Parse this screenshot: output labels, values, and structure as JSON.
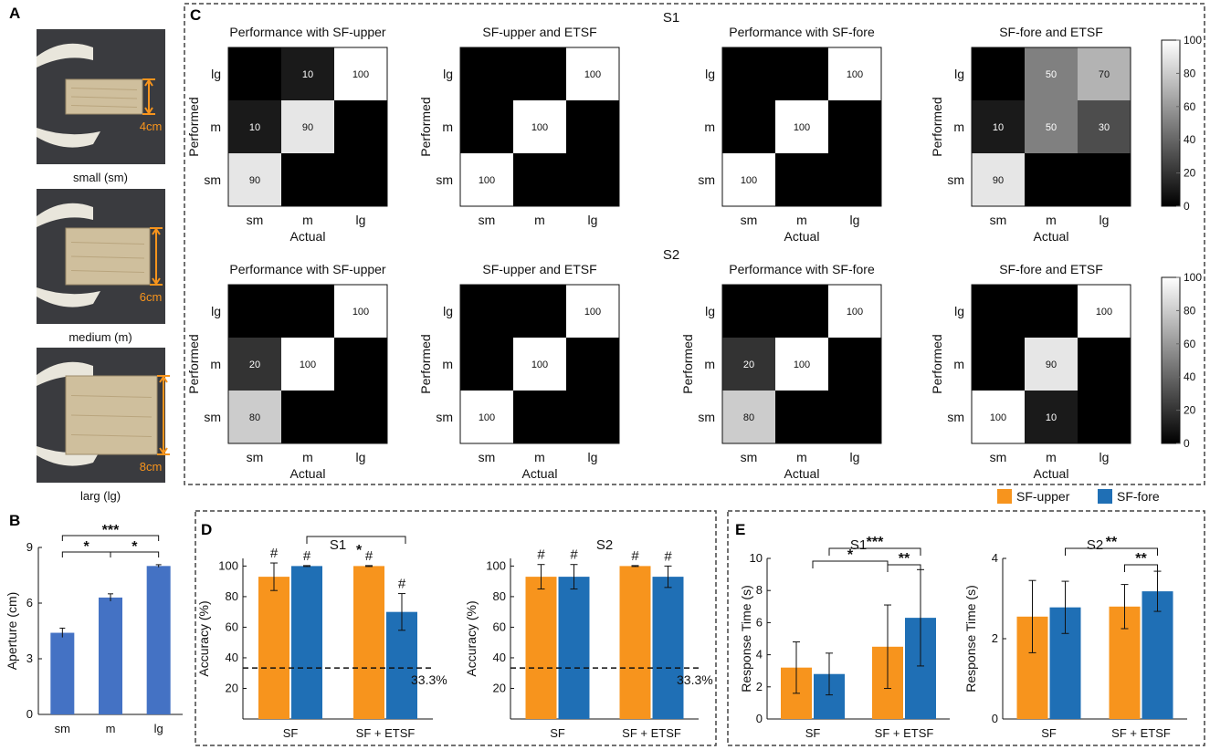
{
  "colors": {
    "sf_upper": "#F7941D",
    "sf_fore": "#1F6FB5",
    "aperture_bar": "#4472C4",
    "photo_bg": "#3a3b3f",
    "wood": "#cfbf9d",
    "measure": "#F7941D"
  },
  "panel_labels": {
    "a": "A",
    "b": "B",
    "c": "C",
    "d": "D",
    "e": "E"
  },
  "panel_a": {
    "photos": [
      {
        "size_text": "4cm",
        "caption": "small (sm)"
      },
      {
        "size_text": "6cm",
        "caption": "medium (m)"
      },
      {
        "size_text": "8cm",
        "caption": "larg (lg)"
      }
    ]
  },
  "chart_data": [
    {
      "id": "B",
      "type": "bar",
      "title": "",
      "categories": [
        "sm",
        "m",
        "lg"
      ],
      "values": [
        4.4,
        6.3,
        8.0
      ],
      "errors": [
        0.25,
        0.2,
        0.07
      ],
      "xlabel": "",
      "ylabel": "Aperture (cm)",
      "ylim": [
        0,
        9
      ],
      "yticks": [
        "0",
        "3",
        "6",
        "9"
      ],
      "significance": [
        {
          "from": 0,
          "to": 1,
          "label": "*"
        },
        {
          "from": 1,
          "to": 2,
          "label": "*"
        },
        {
          "from": 0,
          "to": 2,
          "label": "***"
        }
      ]
    },
    {
      "id": "C",
      "type": "heatmap",
      "row_labels": [
        "S1",
        "S2"
      ],
      "xlabel": "Actual",
      "ylabel": "Performed",
      "categories": [
        "sm",
        "m",
        "lg"
      ],
      "colorbar_ticks": [
        "0",
        "20",
        "40",
        "60",
        "80",
        "100"
      ],
      "matrices": [
        {
          "title": "Performance with SF-upper",
          "row": 0,
          "values": [
            [
              0,
              10,
              100
            ],
            [
              10,
              90,
              0
            ],
            [
              90,
              0,
              0
            ]
          ],
          "xlabel": "Actual",
          "ylabel": "Performed"
        },
        {
          "title": "SF-upper and ETSF",
          "row": 0,
          "values": [
            [
              0,
              0,
              100
            ],
            [
              0,
              100,
              0
            ],
            [
              100,
              0,
              0
            ]
          ],
          "xlabel": "",
          "ylabel": "Performed"
        },
        {
          "title": "Performance with SF-fore",
          "row": 0,
          "values": [
            [
              0,
              0,
              100
            ],
            [
              0,
              100,
              0
            ],
            [
              100,
              0,
              0
            ]
          ],
          "xlabel": "Actual",
          "ylabel": ""
        },
        {
          "title": "SF-fore and ETSF",
          "row": 0,
          "values": [
            [
              0,
              50,
              70
            ],
            [
              10,
              50,
              30
            ],
            [
              90,
              0,
              0
            ]
          ],
          "xlabel": "Actual",
          "ylabel": "Performed"
        },
        {
          "title": "Performance with SF-upper",
          "row": 1,
          "values": [
            [
              0,
              0,
              100
            ],
            [
              20,
              100,
              0
            ],
            [
              80,
              0,
              0
            ]
          ],
          "xlabel": "Actual",
          "ylabel": "Performed"
        },
        {
          "title": "SF-upper and ETSF",
          "row": 1,
          "values": [
            [
              0,
              0,
              100
            ],
            [
              0,
              100,
              0
            ],
            [
              100,
              0,
              0
            ]
          ],
          "xlabel": "Actual",
          "ylabel": "Performed"
        },
        {
          "title": "Performance with SF-fore",
          "row": 1,
          "values": [
            [
              0,
              0,
              100
            ],
            [
              20,
              100,
              0
            ],
            [
              80,
              0,
              0
            ]
          ],
          "xlabel": "Actual",
          "ylabel": "Performed"
        },
        {
          "title": "SF-fore and ETSF",
          "row": 1,
          "values": [
            [
              0,
              0,
              100
            ],
            [
              0,
              90,
              0
            ],
            [
              100,
              10,
              0
            ]
          ],
          "xlabel": "Actual",
          "ylabel": "Performed"
        }
      ]
    },
    {
      "id": "D",
      "type": "bar",
      "ylabel": "Accuracy (%)",
      "ylim": [
        0,
        100
      ],
      "yticks": [
        "20",
        "40",
        "60",
        "80",
        "100"
      ],
      "categories": [
        "SF",
        "SF + ETSF"
      ],
      "reference_line": {
        "value": 33.3,
        "label": "33.3%"
      },
      "subplots": [
        {
          "title": "S1",
          "title_mark": "*",
          "series": [
            {
              "name": "SF-upper",
              "values": [
                93,
                100
              ],
              "errors": [
                9,
                0.3
              ],
              "marks": [
                "#",
                "#"
              ]
            },
            {
              "name": "SF-fore",
              "values": [
                100,
                70
              ],
              "errors": [
                0.3,
                12
              ],
              "marks": [
                "#",
                "#"
              ]
            }
          ]
        },
        {
          "title": "S2",
          "title_mark": "",
          "series": [
            {
              "name": "SF-upper",
              "values": [
                93,
                100
              ],
              "errors": [
                8,
                0.3
              ],
              "marks": [
                "#",
                "#"
              ]
            },
            {
              "name": "SF-fore",
              "values": [
                93,
                93
              ],
              "errors": [
                8,
                7
              ],
              "marks": [
                "#",
                "#"
              ]
            }
          ]
        }
      ]
    },
    {
      "id": "E",
      "type": "bar",
      "ylabel": "Response Time (s)",
      "categories": [
        "SF",
        "SF + ETSF"
      ],
      "legend": {
        "entries": [
          "SF-upper",
          "SF-fore"
        ],
        "position": "top-right"
      },
      "subplots": [
        {
          "title": "S1",
          "ylim": [
            0,
            10
          ],
          "yticks": [
            "0",
            "2",
            "4",
            "6",
            "8",
            "10"
          ],
          "series": [
            {
              "name": "SF-upper",
              "values": [
                3.2,
                4.5
              ],
              "errors": [
                1.6,
                2.6
              ]
            },
            {
              "name": "SF-fore",
              "values": [
                2.8,
                6.3
              ],
              "errors": [
                1.3,
                3.0
              ]
            }
          ],
          "significance": [
            {
              "label": "*",
              "from": "SF",
              "to": "SF-upper @ SF + ETSF"
            },
            {
              "label": "***",
              "from": "SF-fore @ SF",
              "to": "SF-fore @ SF + ETSF"
            },
            {
              "label": "**",
              "from": "SF-upper @ SF + ETSF",
              "to": "SF-fore @ SF + ETSF"
            }
          ]
        },
        {
          "title": "S2",
          "ylim": [
            0,
            4
          ],
          "yticks": [
            "0",
            "2",
            "4"
          ],
          "series": [
            {
              "name": "SF-upper",
              "values": [
                2.55,
                2.8
              ],
              "errors": [
                0.9,
                0.55
              ]
            },
            {
              "name": "SF-fore",
              "values": [
                2.78,
                3.18
              ],
              "errors": [
                0.65,
                0.5
              ]
            }
          ],
          "significance": [
            {
              "label": "**",
              "from": "SF-fore @ SF",
              "to": "SF-fore @ SF + ETSF"
            },
            {
              "label": "**",
              "from": "SF-upper @ SF + ETSF",
              "to": "SF-fore @ SF + ETSF"
            }
          ]
        }
      ]
    }
  ]
}
